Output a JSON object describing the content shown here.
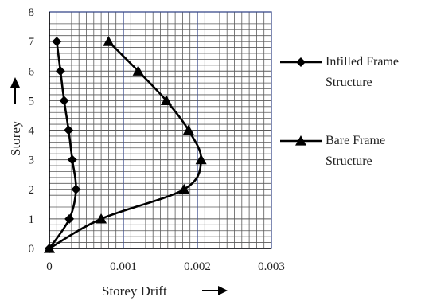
{
  "chart_data": {
    "type": "line",
    "xlabel": "Storey Drift",
    "ylabel": "Storey",
    "xlim": [
      0,
      0.003
    ],
    "ylim": [
      0,
      8
    ],
    "x_ticks": [
      "0",
      "0.001",
      "0.002",
      "0.003"
    ],
    "y_ticks": [
      "0",
      "1",
      "2",
      "3",
      "4",
      "5",
      "6",
      "7",
      "8"
    ],
    "grid": true,
    "legend_position": "right",
    "series": [
      {
        "name_lines": [
          "Infilled Frame",
          "Structure"
        ],
        "marker": "diamond",
        "color": "#000000",
        "points": [
          {
            "x": 0.0,
            "y": 0
          },
          {
            "x": 0.00027,
            "y": 1
          },
          {
            "x": 0.00036,
            "y": 2
          },
          {
            "x": 0.00031,
            "y": 3
          },
          {
            "x": 0.00026,
            "y": 4
          },
          {
            "x": 0.0002,
            "y": 5
          },
          {
            "x": 0.00015,
            "y": 6
          },
          {
            "x": 0.0001,
            "y": 7
          }
        ]
      },
      {
        "name_lines": [
          "Bare Frame",
          "Structure"
        ],
        "marker": "triangle",
        "color": "#000000",
        "points": [
          {
            "x": 0.0,
            "y": 0
          },
          {
            "x": 0.0007,
            "y": 1
          },
          {
            "x": 0.00182,
            "y": 2
          },
          {
            "x": 0.00205,
            "y": 3
          },
          {
            "x": 0.00188,
            "y": 4
          },
          {
            "x": 0.00158,
            "y": 5
          },
          {
            "x": 0.0012,
            "y": 6
          },
          {
            "x": 0.0008,
            "y": 7
          }
        ]
      }
    ]
  },
  "colors": {
    "grid_major": "#3a4a8c",
    "grid_minor": "#5a5a5a",
    "line": "#000000"
  }
}
